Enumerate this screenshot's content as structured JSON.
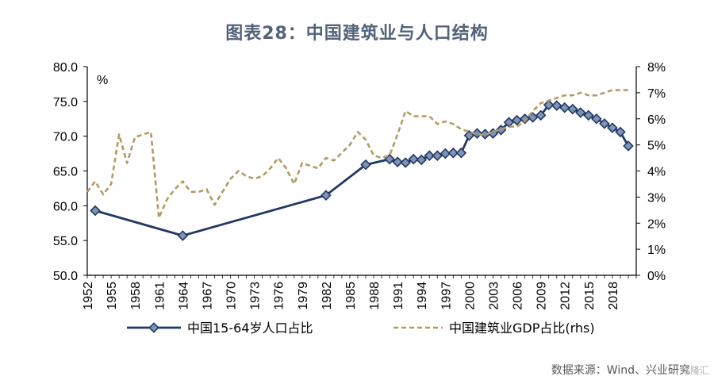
{
  "chart_data": {
    "type": "line",
    "title": "图表28：中国建筑业与人口结构",
    "left_unit": "%",
    "left_ylim": [
      50,
      80
    ],
    "left_ticks": [
      "80.0",
      "75.0",
      "70.0",
      "65.0",
      "60.0",
      "55.0",
      "50.0"
    ],
    "right_ylim": [
      0,
      8
    ],
    "right_ticks": [
      "8%",
      "7%",
      "6%",
      "5%",
      "4%",
      "3%",
      "2%",
      "1%",
      "0%"
    ],
    "xlim": [
      1952,
      2021
    ],
    "x_tick_labels": [
      "1952",
      "1955",
      "1958",
      "1961",
      "1964",
      "1967",
      "1970",
      "1973",
      "1976",
      "1979",
      "1982",
      "1985",
      "1988",
      "1991",
      "1994",
      "1997",
      "2000",
      "2003",
      "2006",
      "2009",
      "2012",
      "2015",
      "2018"
    ],
    "series": [
      {
        "name": "中国15-64岁人口占比",
        "axis": "left",
        "color": "#203864",
        "style": "solid-diamond",
        "x": [
          1953,
          1964,
          1982,
          1987,
          1990,
          1991,
          1992,
          1993,
          1994,
          1995,
          1996,
          1997,
          1998,
          1999,
          2000,
          2001,
          2002,
          2003,
          2004,
          2005,
          2006,
          2007,
          2008,
          2009,
          2010,
          2011,
          2012,
          2013,
          2014,
          2015,
          2016,
          2017,
          2018,
          2019,
          2020
        ],
        "y": [
          59.3,
          55.7,
          61.5,
          65.9,
          66.7,
          66.3,
          66.2,
          66.7,
          66.6,
          67.2,
          67.2,
          67.5,
          67.6,
          67.6,
          70.1,
          70.4,
          70.3,
          70.4,
          70.9,
          72.0,
          72.3,
          72.5,
          72.7,
          73.0,
          74.5,
          74.4,
          74.1,
          73.9,
          73.4,
          73.0,
          72.5,
          71.8,
          71.2,
          70.6,
          68.6
        ]
      },
      {
        "name": "中国建筑业GDP占比(rhs)",
        "axis": "right",
        "color": "#b49a64",
        "style": "dashed",
        "x": [
          1952,
          1953,
          1954,
          1955,
          1956,
          1957,
          1958,
          1959,
          1960,
          1961,
          1962,
          1963,
          1964,
          1965,
          1966,
          1967,
          1968,
          1969,
          1970,
          1971,
          1972,
          1973,
          1974,
          1975,
          1976,
          1977,
          1978,
          1979,
          1980,
          1981,
          1982,
          1983,
          1984,
          1985,
          1986,
          1987,
          1988,
          1989,
          1990,
          1991,
          1992,
          1993,
          1994,
          1995,
          1996,
          1997,
          1998,
          1999,
          2000,
          2001,
          2002,
          2003,
          2004,
          2005,
          2006,
          2007,
          2008,
          2009,
          2010,
          2011,
          2012,
          2013,
          2014,
          2015,
          2016,
          2017,
          2018,
          2019,
          2020
        ],
        "y": [
          3.2,
          3.6,
          3.1,
          3.5,
          5.4,
          4.3,
          5.3,
          5.4,
          5.5,
          2.2,
          2.9,
          3.3,
          3.6,
          3.2,
          3.2,
          3.3,
          2.7,
          3.2,
          3.7,
          4.0,
          3.8,
          3.7,
          3.8,
          4.1,
          4.5,
          4.1,
          3.5,
          4.3,
          4.2,
          4.1,
          4.5,
          4.4,
          4.7,
          5.0,
          5.5,
          5.2,
          4.6,
          4.5,
          4.6,
          5.4,
          6.3,
          6.1,
          6.1,
          6.1,
          5.8,
          5.9,
          5.8,
          5.6,
          5.5,
          5.4,
          5.4,
          5.5,
          5.6,
          5.7,
          5.7,
          5.9,
          6.3,
          6.6,
          6.7,
          6.8,
          6.9,
          6.9,
          7.0,
          6.9,
          6.9,
          7.0,
          7.1,
          7.1,
          7.1
        ]
      }
    ],
    "legend": [
      {
        "label": "中国15-64岁人口占比"
      },
      {
        "label": "中国建筑业GDP占比(rhs)"
      }
    ],
    "source": "数据来源：Wind、兴业研究",
    "watermark": "格隆汇"
  }
}
